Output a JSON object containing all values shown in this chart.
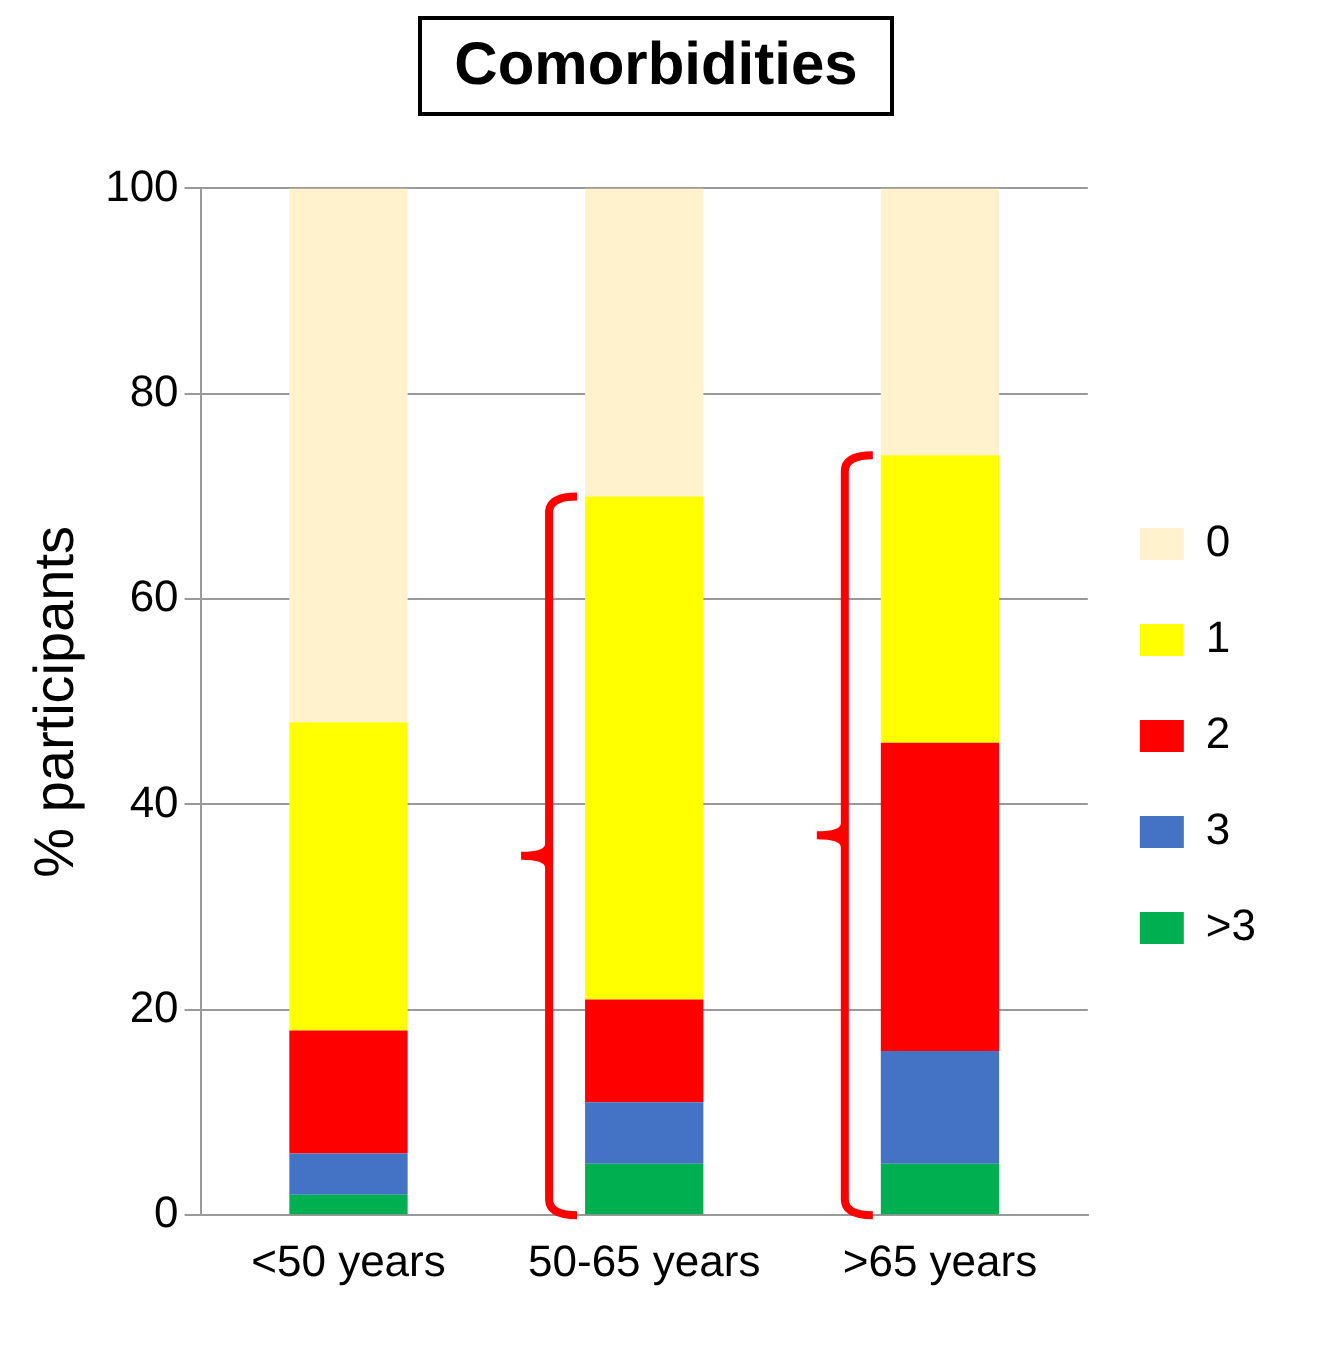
{
  "chart_data": {
    "type": "bar",
    "title": "Comorbidities",
    "ylabel": "% participants",
    "categories": [
      "<50 years",
      "50-65 years",
      ">65 years"
    ],
    "stacked": true,
    "ylim": [
      0,
      100
    ],
    "yticks": [
      0,
      20,
      40,
      60,
      80,
      100
    ],
    "grid": "y",
    "legend": "right",
    "series": [
      {
        "name": ">3",
        "color": "#00b050",
        "values": [
          2,
          5,
          5
        ]
      },
      {
        "name": "3",
        "color": "#4472c4",
        "values": [
          4,
          6,
          11
        ]
      },
      {
        "name": "2",
        "color": "#ff0000",
        "values": [
          12,
          10,
          30
        ]
      },
      {
        "name": "1",
        "color": "#ffff00",
        "values": [
          30,
          49,
          28
        ]
      },
      {
        "name": "0",
        "color": "#fff2cc",
        "values": [
          52,
          30,
          26
        ]
      }
    ]
  }
}
